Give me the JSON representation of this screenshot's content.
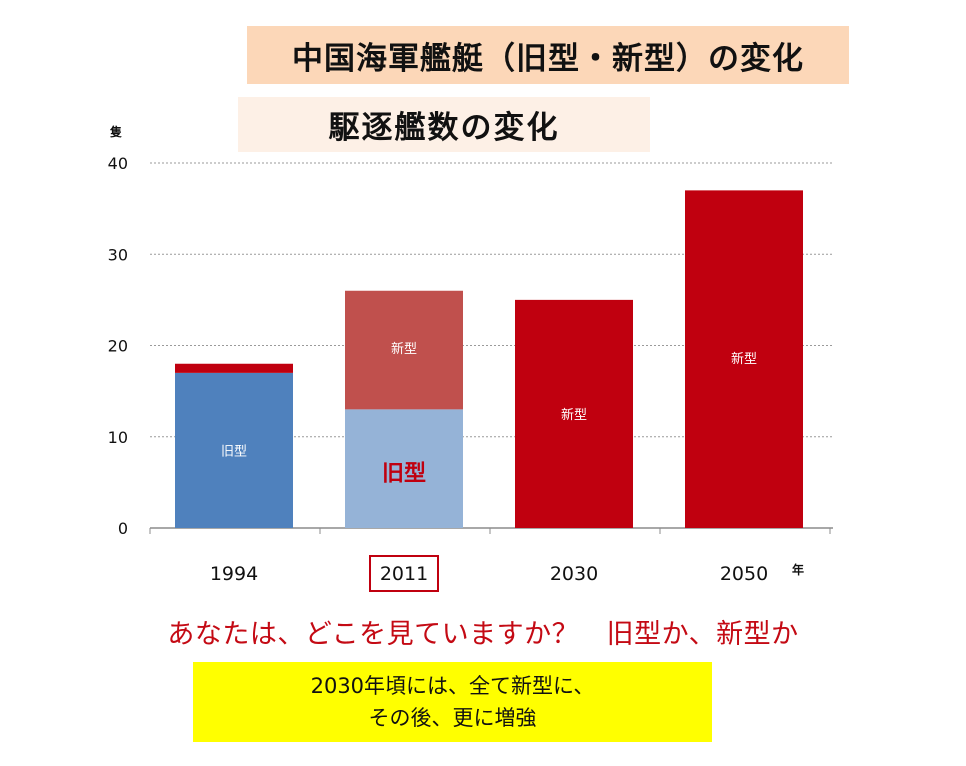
{
  "header": {
    "title": "中国海軍艦艇（旧型・新型）の変化",
    "subtitle": "駆逐艦数の変化"
  },
  "chart_data": {
    "type": "bar",
    "stacked": true,
    "ylabel": "隻",
    "xlabel": "年",
    "ylim": [
      0,
      40
    ],
    "yticks": [
      0,
      10,
      20,
      30,
      40
    ],
    "grid": true,
    "categories": [
      "1994",
      "2011",
      "2030",
      "2050"
    ],
    "highlighted_category": "2011",
    "series": [
      {
        "name": "旧型",
        "values": [
          17,
          13,
          0,
          0
        ],
        "colors": [
          "#4f81bd",
          "#95b3d7",
          "#c0000f",
          "#c0000f"
        ]
      },
      {
        "name": "新型",
        "values": [
          1,
          13,
          25,
          37
        ],
        "colors": [
          "#c0000f",
          "#c0504d",
          "#c0000f",
          "#c0000f"
        ]
      }
    ],
    "bar_labels": [
      {
        "category": "1994",
        "series": "旧型",
        "text": "旧型",
        "style": "small-white"
      },
      {
        "category": "2011",
        "series": "新型",
        "text": "新型",
        "style": "small-white"
      },
      {
        "category": "2011",
        "series": "旧型",
        "text": "旧型",
        "style": "large-red"
      },
      {
        "category": "2030",
        "series": "新型",
        "text": "新型",
        "style": "small-white"
      },
      {
        "category": "2050",
        "series": "新型",
        "text": "新型",
        "style": "small-white"
      }
    ]
  },
  "footer": {
    "question": "あなたは、どこを見ていますか？　旧型か、新型か",
    "note_line1": "2030年頃には、全て新型に、",
    "note_line2": "その後、更に増強"
  }
}
